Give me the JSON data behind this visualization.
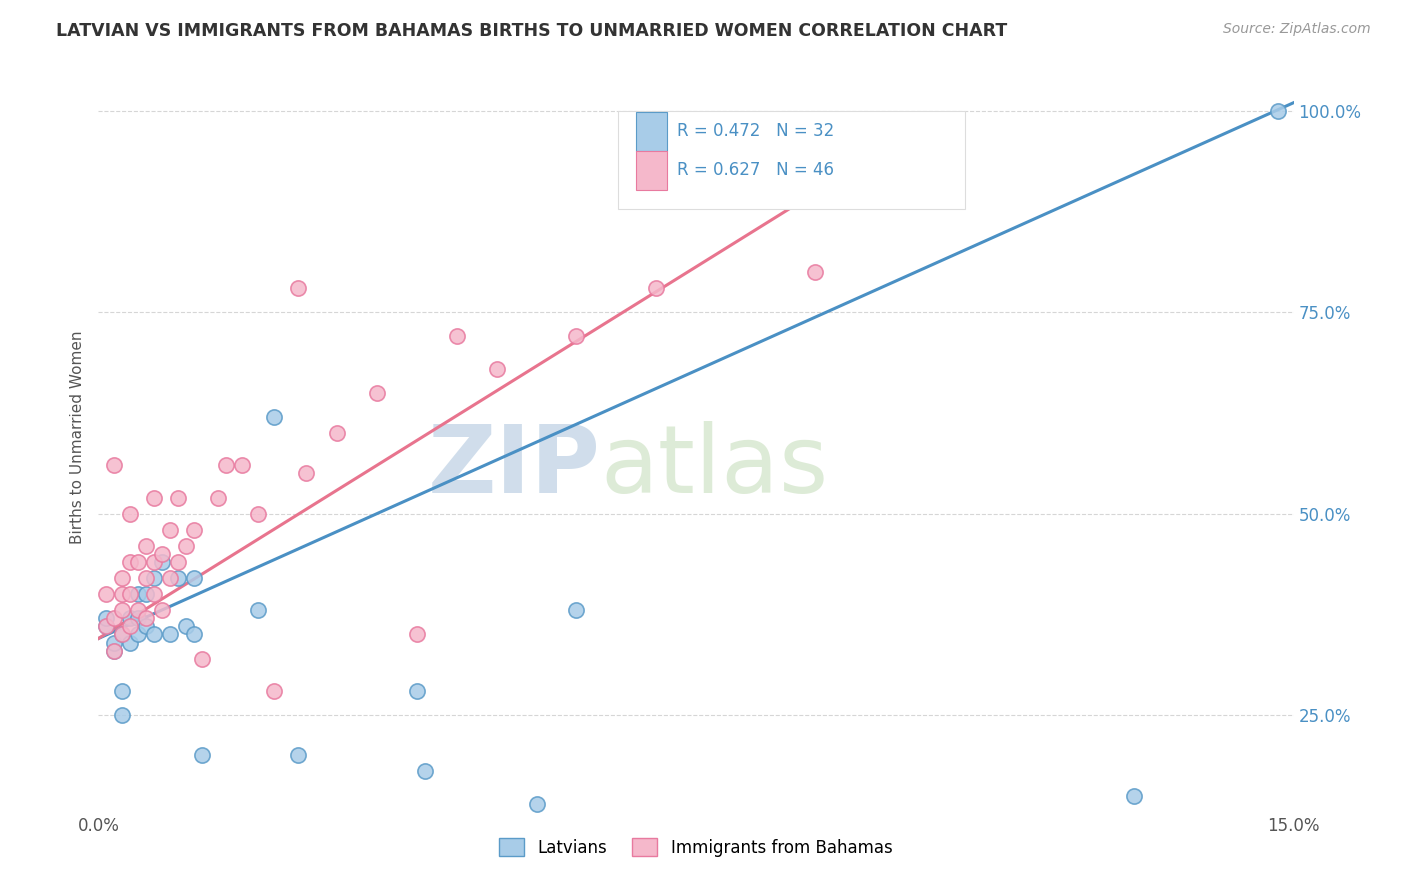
{
  "title": "LATVIAN VS IMMIGRANTS FROM BAHAMAS BIRTHS TO UNMARRIED WOMEN CORRELATION CHART",
  "source": "Source: ZipAtlas.com",
  "ylabel": "Births to Unmarried Women",
  "xmin": 0.0,
  "xmax": 0.15,
  "ymin": 0.13,
  "ymax": 1.06,
  "r_latvian": 0.472,
  "n_latvian": 32,
  "r_bahamas": 0.627,
  "n_bahamas": 46,
  "blue_color": "#a8cce8",
  "pink_color": "#f5b8cb",
  "blue_edge_color": "#5b9bc8",
  "pink_edge_color": "#e87a9f",
  "blue_line_color": "#4a90c4",
  "pink_line_color": "#e8748e",
  "legend_label_latvian": "Latvians",
  "legend_label_bahamas": "Immigrants from Bahamas",
  "ytick_labels": [
    "25.0%",
    "50.0%",
    "75.0%",
    "100.0%"
  ],
  "ytick_values": [
    0.25,
    0.5,
    0.75,
    1.0
  ],
  "blue_scatter_x": [
    0.001,
    0.001,
    0.002,
    0.002,
    0.003,
    0.003,
    0.003,
    0.004,
    0.004,
    0.005,
    0.005,
    0.005,
    0.006,
    0.006,
    0.007,
    0.007,
    0.008,
    0.009,
    0.01,
    0.011,
    0.012,
    0.012,
    0.013,
    0.02,
    0.022,
    0.025,
    0.04,
    0.041,
    0.055,
    0.06,
    0.13,
    0.148
  ],
  "blue_scatter_y": [
    0.36,
    0.37,
    0.33,
    0.34,
    0.25,
    0.28,
    0.35,
    0.34,
    0.37,
    0.35,
    0.37,
    0.4,
    0.36,
    0.4,
    0.35,
    0.42,
    0.44,
    0.35,
    0.42,
    0.36,
    0.35,
    0.42,
    0.2,
    0.38,
    0.62,
    0.2,
    0.28,
    0.18,
    0.14,
    0.38,
    0.15,
    1.0
  ],
  "pink_scatter_x": [
    0.001,
    0.001,
    0.002,
    0.002,
    0.002,
    0.003,
    0.003,
    0.003,
    0.003,
    0.004,
    0.004,
    0.004,
    0.004,
    0.005,
    0.005,
    0.006,
    0.006,
    0.006,
    0.007,
    0.007,
    0.007,
    0.008,
    0.008,
    0.009,
    0.009,
    0.01,
    0.01,
    0.011,
    0.012,
    0.013,
    0.015,
    0.016,
    0.018,
    0.02,
    0.022,
    0.025,
    0.026,
    0.03,
    0.035,
    0.04,
    0.045,
    0.05,
    0.06,
    0.07,
    0.09,
    0.1
  ],
  "pink_scatter_y": [
    0.36,
    0.4,
    0.33,
    0.37,
    0.56,
    0.35,
    0.38,
    0.4,
    0.42,
    0.36,
    0.4,
    0.44,
    0.5,
    0.38,
    0.44,
    0.37,
    0.42,
    0.46,
    0.4,
    0.44,
    0.52,
    0.38,
    0.45,
    0.42,
    0.48,
    0.44,
    0.52,
    0.46,
    0.48,
    0.32,
    0.52,
    0.56,
    0.56,
    0.5,
    0.28,
    0.78,
    0.55,
    0.6,
    0.65,
    0.35,
    0.72,
    0.68,
    0.72,
    0.78,
    0.8,
    0.9
  ],
  "blue_line_x0": 0.0,
  "blue_line_y0": 0.345,
  "blue_line_x1": 0.15,
  "blue_line_y1": 1.01,
  "pink_line_x0": 0.0,
  "pink_line_y0": 0.345,
  "pink_line_x1": 0.1,
  "pink_line_y1": 0.96,
  "watermark_zip": "ZIP",
  "watermark_atlas": "atlas",
  "background_color": "#ffffff",
  "grid_color": "#cccccc",
  "tick_color": "#4a90c4"
}
